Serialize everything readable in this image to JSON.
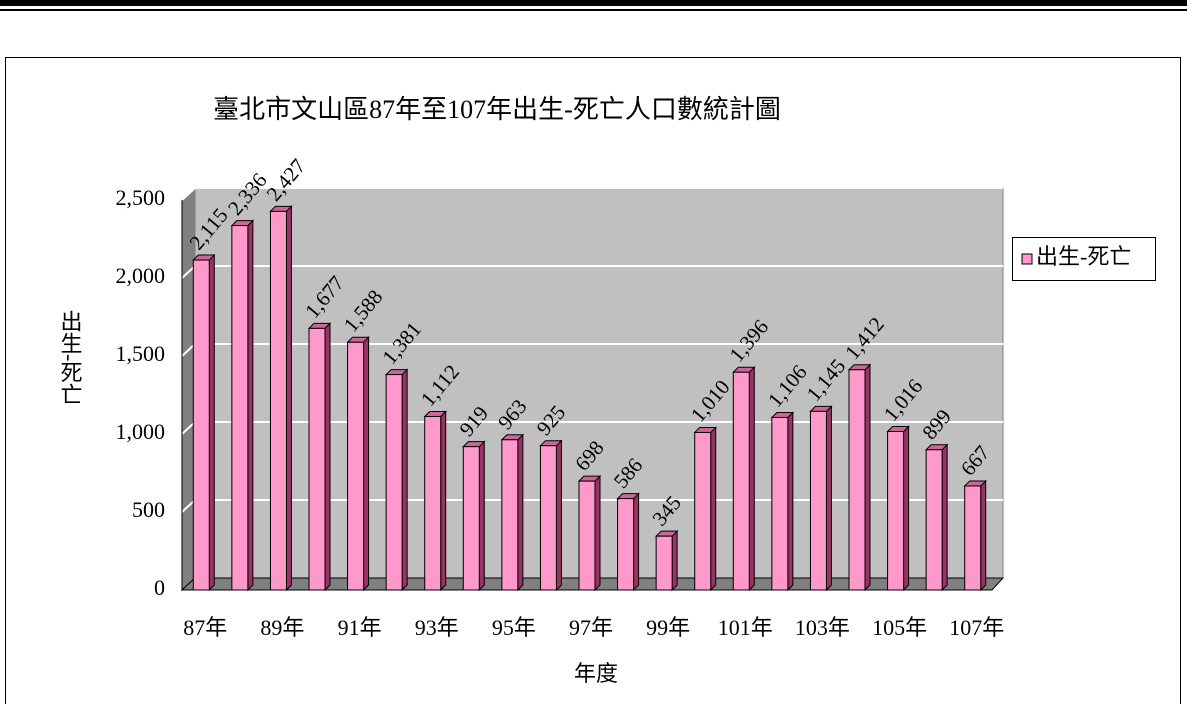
{
  "chart_data": {
    "type": "bar",
    "title": "臺北市文山區87年至107年出生-死亡人口數統計圖",
    "x_label": "年度",
    "y_label": "出生-死亡",
    "categories": [
      "87年",
      null,
      "89年",
      null,
      "91年",
      null,
      "93年",
      null,
      "95年",
      null,
      "97年",
      null,
      "99年",
      null,
      "101年",
      null,
      "103年",
      null,
      "105年",
      null,
      "107年"
    ],
    "series": [
      {
        "name": "出生-死亡",
        "color": "#ff99cc",
        "values": [
          2115,
          2336,
          2427,
          1677,
          1588,
          1381,
          1112,
          919,
          963,
          925,
          698,
          586,
          345,
          1010,
          1396,
          1106,
          1145,
          1412,
          1016,
          899,
          667
        ],
        "value_labels": [
          "2,115",
          "2,336",
          "2,427",
          "1,677",
          "1,588",
          "1,381",
          "1,112",
          "919",
          "963",
          "925",
          "698",
          "586",
          "345",
          "1,010",
          "1,396",
          "1,106",
          "1,145",
          "1,412",
          "1,016",
          "899",
          "667"
        ]
      }
    ],
    "ylim": [
      0,
      2500
    ],
    "yticks": [
      0,
      500,
      {
        "value": 1000,
        "label": "1,000"
      },
      {
        "value": 1500,
        "label": "1,500"
      },
      {
        "value": 2000,
        "label": "2,000"
      },
      {
        "value": 2500,
        "label": "2,500"
      }
    ],
    "grid": true,
    "legend": "right"
  }
}
